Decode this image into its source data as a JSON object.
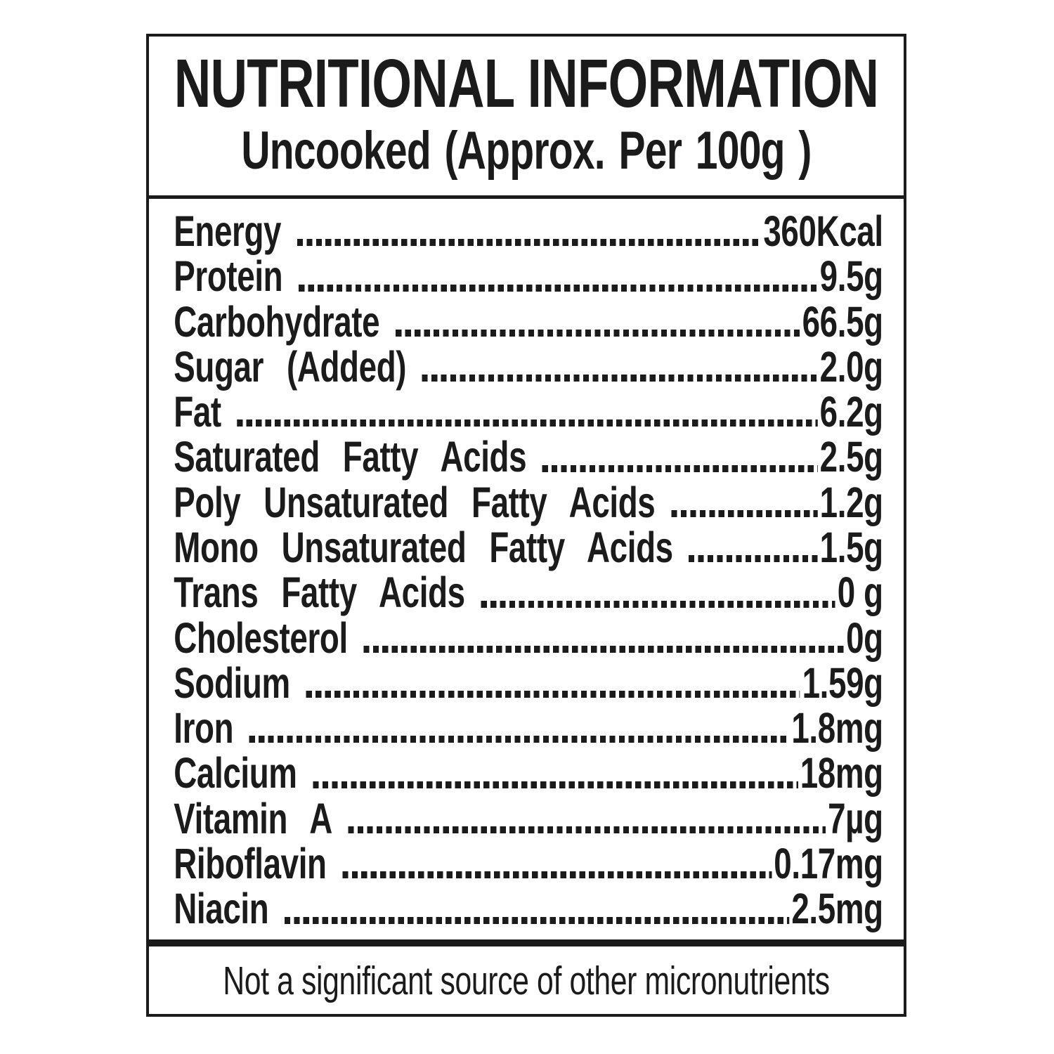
{
  "label": {
    "title": "NUTRITIONAL INFORMATION",
    "subtitle": "Uncooked (Approx. Per 100g )",
    "rows": [
      {
        "name": "Energy",
        "value": "360Kcal"
      },
      {
        "name": "Protein",
        "value": "9.5g"
      },
      {
        "name": "Carbohydrate",
        "value": "66.5g"
      },
      {
        "name": "Sugar (Added)",
        "value": "2.0g"
      },
      {
        "name": "Fat",
        "value": "6.2g"
      },
      {
        "name": "Saturated Fatty Acids",
        "value": "2.5g"
      },
      {
        "name": "Poly Unsaturated Fatty Acids",
        "value": "1.2g"
      },
      {
        "name": "Mono Unsaturated Fatty Acids",
        "value": "1.5g"
      },
      {
        "name": "Trans Fatty Acids",
        "value": "0 g"
      },
      {
        "name": "Cholesterol",
        "value": "0g"
      },
      {
        "name": "Sodium",
        "value": "1.59g"
      },
      {
        "name": "Iron",
        "value": "1.8mg"
      },
      {
        "name": "Calcium",
        "value": "18mg"
      },
      {
        "name": "Vitamin A",
        "value": "7µg"
      },
      {
        "name": "Riboflavin",
        "value": "0.17mg"
      },
      {
        "name": "Niacin",
        "value": "2.5mg"
      }
    ],
    "footer": "Not a significant source of other micronutrients",
    "colors": {
      "text": "#1b1b1b",
      "border": "#1b1b1b",
      "background": "#ffffff"
    }
  }
}
